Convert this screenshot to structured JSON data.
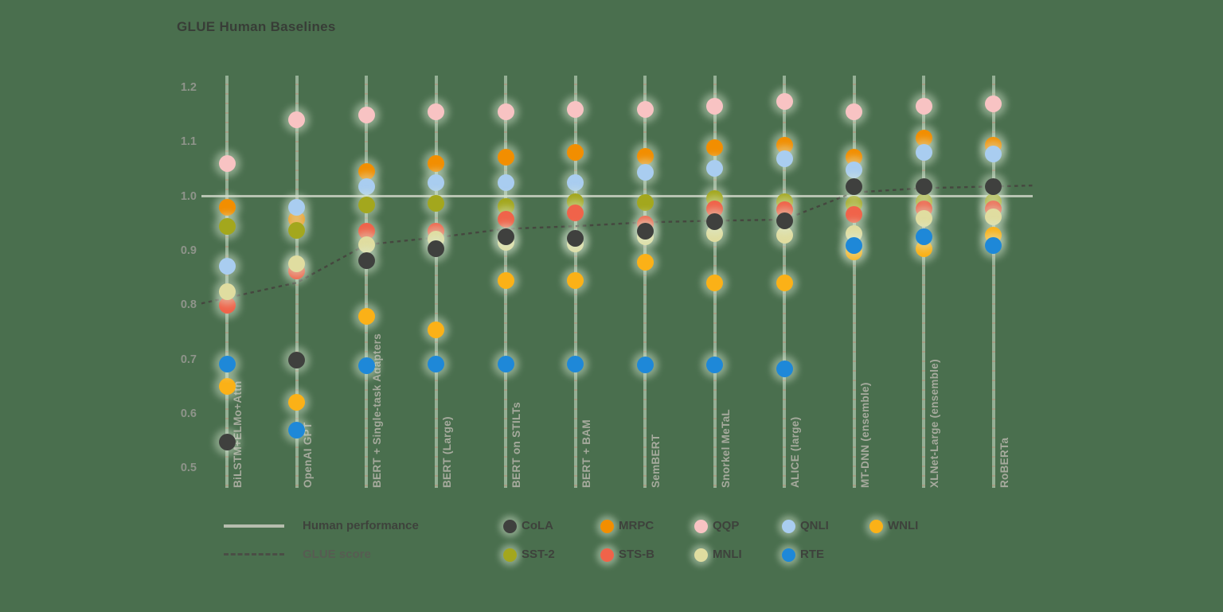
{
  "title": "GLUE Human Baselines",
  "legend": {
    "line_entries": [
      {
        "style": "solid",
        "label": "Human performance"
      },
      {
        "style": "dashed",
        "label": "GLUE score"
      }
    ],
    "task_rows": [
      [
        "CoLA",
        "MRPC",
        "QQP",
        "QNLI",
        "WNLI"
      ],
      [
        "SST-2",
        "STS-B",
        "MNLI",
        "RTE"
      ]
    ]
  },
  "colors": {
    "background": "#4A6F4E",
    "human_line": "#CBD3C4",
    "glue_line": "#45473F",
    "CoLA": "#3F403E",
    "SST-2": "#A3A71D",
    "MRPC": "#F28E00",
    "STS-B": "#F0634A",
    "QQP": "#F8C3C3",
    "MNLI": "#E0DDA0",
    "QNLI": "#A9CDF0",
    "RTE": "#1E88D8",
    "WNLI": "#FBB117"
  },
  "chart_data": {
    "type": "scatter",
    "title": "GLUE Human Baselines",
    "xlabel": "",
    "ylabel": "",
    "ylim": [
      0.45,
      1.25
    ],
    "yticks": [
      1.2,
      1.1,
      1.0,
      0.9,
      0.8,
      0.7,
      0.6,
      0.5
    ],
    "grid": false,
    "legend_position": "bottom",
    "human_performance": 1.0,
    "categories": [
      "BiLSTM+ELMo+Attn",
      "OpenAI GPT",
      "BERT + Single-task Adapters",
      "BERT (Large)",
      "BERT on STILTs",
      "BERT + BAM",
      "SemBERT",
      "Snorkel MeTaL",
      "ALICE (large)",
      "MT-DNN (ensemble)",
      "XLNet-Large (ensemble)",
      "RoBERTa"
    ],
    "glue_score": [
      0.813,
      0.841,
      0.911,
      0.924,
      0.94,
      0.945,
      0.952,
      0.955,
      0.957,
      1.007,
      1.015,
      1.018
    ],
    "series": [
      {
        "name": "QQP",
        "color": "#F8C3C3",
        "values": [
          1.06,
          1.14,
          1.15,
          1.155,
          1.155,
          1.16,
          1.16,
          1.165,
          1.175,
          1.155,
          1.165,
          1.17
        ]
      },
      {
        "name": "MRPC",
        "color": "#F28E00",
        "values": [
          0.98,
          0.958,
          1.045,
          1.06,
          1.072,
          1.08,
          1.074,
          1.09,
          1.094,
          1.072,
          1.107,
          1.094
        ]
      },
      {
        "name": "QNLI",
        "color": "#A9CDF0",
        "values": [
          0.872,
          0.98,
          1.018,
          1.025,
          1.025,
          1.025,
          1.044,
          1.051,
          1.069,
          1.048,
          1.081,
          1.078
        ]
      },
      {
        "name": "SST-2",
        "color": "#A3A71D",
        "values": [
          0.945,
          0.937,
          0.984,
          0.987,
          0.981,
          0.99,
          0.988,
          0.996,
          0.99,
          0.986,
          0.99,
          0.99
        ]
      },
      {
        "name": "STS-B",
        "color": "#F0634A",
        "values": [
          0.799,
          0.862,
          0.936,
          0.935,
          0.957,
          0.969,
          0.949,
          0.977,
          0.975,
          0.966,
          0.977,
          0.976
        ]
      },
      {
        "name": "MNLI",
        "color": "#E0DDA0",
        "values": [
          0.825,
          0.876,
          0.911,
          0.921,
          0.915,
          0.912,
          0.926,
          0.932,
          0.929,
          0.931,
          0.959,
          0.962
        ]
      },
      {
        "name": "WNLI",
        "color": "#FBB117",
        "values": [
          0.65,
          0.621,
          0.779,
          0.754,
          0.845,
          0.845,
          0.879,
          0.841,
          0.841,
          0.898,
          0.904,
          0.928
        ]
      },
      {
        "name": "RTE",
        "color": "#1E88D8",
        "values": [
          0.691,
          0.569,
          0.688,
          0.691,
          0.691,
          0.691,
          0.69,
          0.69,
          0.683,
          0.91,
          0.926,
          0.909
        ]
      },
      {
        "name": "CoLA",
        "color": "#3F403E",
        "values": [
          0.548,
          0.698,
          0.881,
          0.904,
          0.926,
          0.922,
          0.936,
          0.954,
          0.955,
          1.018,
          1.017,
          1.017
        ]
      }
    ]
  }
}
